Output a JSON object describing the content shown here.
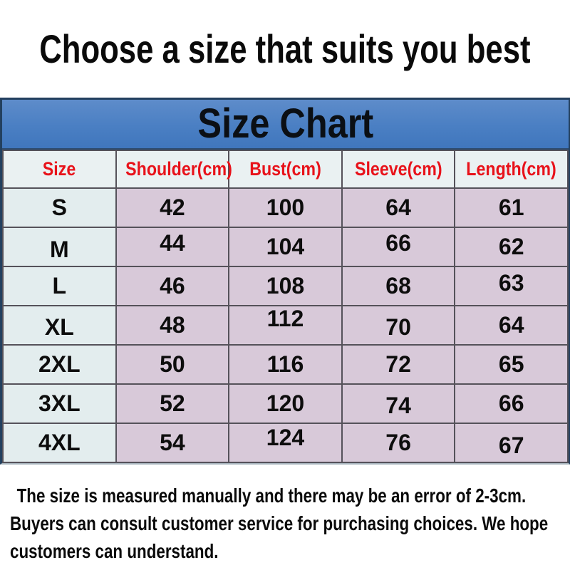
{
  "title": "Choose a size that suits you best",
  "chart_data": {
    "type": "table",
    "title": "Size Chart",
    "columns": [
      "Size",
      "Shoulder(cm)",
      "Bust(cm)",
      "Sleeve(cm)",
      "Length(cm)"
    ],
    "rows": [
      [
        "S",
        "42",
        "100",
        "64",
        "61"
      ],
      [
        "M",
        "44",
        "104",
        "66",
        "62"
      ],
      [
        "L",
        "46",
        "108",
        "68",
        "63"
      ],
      [
        "XL",
        "48",
        "112",
        "70",
        "64"
      ],
      [
        "2XL",
        "50",
        "116",
        "72",
        "65"
      ],
      [
        "3XL",
        "52",
        "120",
        "74",
        "66"
      ],
      [
        "4XL",
        "54",
        "124",
        "76",
        "67"
      ]
    ]
  },
  "note": {
    "lines": [
      "The size is measured manually and there may be an error of 2-3cm.",
      "Buyers can consult customer service for purchasing choices. We hope",
      "customers can understand."
    ]
  },
  "colors": {
    "band_blue": "#4e81c4",
    "band_border_navy": "#23405f",
    "column_header_red": "#e8121a",
    "header_row_bg": "#eaf1f2",
    "size_column_bg": "#e3edee",
    "data_cell_bg": "#d8c9d9",
    "grid_line": "#55525a",
    "text_black": "#0d0d0d"
  }
}
